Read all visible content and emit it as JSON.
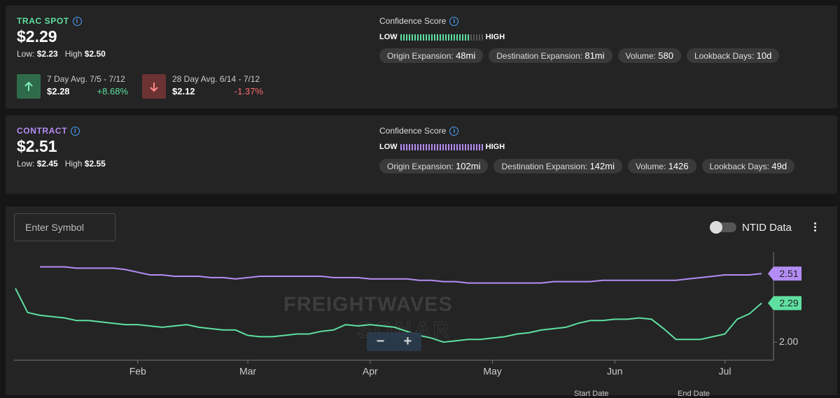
{
  "cards": [
    {
      "label": "TRAC SPOT",
      "accent": "#5ee0a0",
      "price": "$2.29",
      "low_label": "Low:",
      "low": "$2.23",
      "high_label": "High",
      "high": "$2.50",
      "averages": [
        {
          "title": "7 Day Avg. 7/5 - 7/12",
          "value": "$2.28",
          "change": "+8.68%",
          "direction": "up"
        },
        {
          "title": "28 Day Avg. 6/14 - 7/12",
          "value": "$2.12",
          "change": "-1.37%",
          "direction": "down"
        }
      ],
      "confidence": {
        "title": "Confidence Score",
        "low": "LOW",
        "high": "HIGH",
        "filled": 25,
        "total": 30
      },
      "chips": [
        {
          "label": "Origin Expansion:",
          "value": "48mi"
        },
        {
          "label": "Destination Expansion:",
          "value": "81mi"
        },
        {
          "label": "Volume:",
          "value": "580"
        },
        {
          "label": "Lookback Days:",
          "value": "10d"
        }
      ]
    },
    {
      "label": "CONTRACT",
      "accent": "#b48cf5",
      "price": "$2.51",
      "low_label": "Low:",
      "low": "$2.45",
      "high_label": "High",
      "high": "$2.55",
      "averages": [],
      "confidence": {
        "title": "Confidence Score",
        "low": "LOW",
        "high": "HIGH",
        "filled": 30,
        "total": 30
      },
      "chips": [
        {
          "label": "Origin Expansion:",
          "value": "102mi"
        },
        {
          "label": "Destination Expansion:",
          "value": "142mi"
        },
        {
          "label": "Volume:",
          "value": "1426"
        },
        {
          "label": "Lookback Days:",
          "value": "49d"
        }
      ]
    }
  ],
  "controls": {
    "symbol_placeholder": "Enter Symbol",
    "toggle": "NTID Data",
    "zoom_out": "−",
    "zoom_in": "+",
    "start_date": "Start Date",
    "end_date": "End Date"
  },
  "watermark": [
    "FREIGHTWAVES",
    "SONAR"
  ],
  "chart_data": {
    "type": "line",
    "categories": [
      null,
      null,
      null,
      null,
      null,
      null,
      null,
      null,
      null,
      null,
      "Feb",
      null,
      null,
      null,
      null,
      null,
      null,
      null,
      null,
      "Mar",
      null,
      null,
      null,
      null,
      null,
      null,
      null,
      null,
      null,
      "Apr",
      null,
      null,
      null,
      null,
      null,
      null,
      null,
      null,
      null,
      "May",
      null,
      null,
      null,
      null,
      null,
      null,
      null,
      null,
      null,
      "Jun",
      null,
      null,
      null,
      null,
      null,
      null,
      null,
      null,
      "Jul",
      null,
      null,
      null
    ],
    "series": [
      {
        "name": "CONTRACT",
        "color": "#b48cf5",
        "values": [
          null,
          null,
          2.56,
          2.56,
          2.56,
          2.55,
          2.55,
          2.55,
          2.55,
          2.54,
          2.52,
          2.5,
          2.5,
          2.49,
          2.49,
          2.49,
          2.48,
          2.48,
          2.47,
          2.48,
          2.49,
          2.49,
          2.49,
          2.49,
          2.49,
          2.49,
          2.48,
          2.48,
          2.48,
          2.47,
          2.47,
          2.47,
          2.47,
          2.46,
          2.46,
          2.45,
          2.45,
          2.44,
          2.44,
          2.44,
          2.44,
          2.44,
          2.44,
          2.44,
          2.45,
          2.45,
          2.45,
          2.45,
          2.46,
          2.46,
          2.46,
          2.46,
          2.46,
          2.46,
          2.46,
          2.47,
          2.48,
          2.49,
          2.5,
          2.5,
          2.5,
          2.51
        ]
      },
      {
        "name": "TRAC SPOT",
        "color": "#5ee0a0",
        "values": [
          2.4,
          2.22,
          2.2,
          2.19,
          2.18,
          2.16,
          2.16,
          2.15,
          2.14,
          2.13,
          2.13,
          2.12,
          2.11,
          2.12,
          2.13,
          2.11,
          2.1,
          2.09,
          2.09,
          2.05,
          2.04,
          2.04,
          2.05,
          2.06,
          2.06,
          2.08,
          2.09,
          2.13,
          2.12,
          2.13,
          2.12,
          2.11,
          2.08,
          2.05,
          2.03,
          2.0,
          2.01,
          2.02,
          2.02,
          2.03,
          2.04,
          2.06,
          2.07,
          2.09,
          2.1,
          2.11,
          2.14,
          2.16,
          2.16,
          2.17,
          2.17,
          2.18,
          2.17,
          2.1,
          2.02,
          2.02,
          2.02,
          2.04,
          2.06,
          2.17,
          2.21,
          2.29
        ]
      }
    ],
    "ylim": [
      1.865,
      2.646
    ],
    "yticks": [
      {
        "value": 2,
        "label": "2.00"
      }
    ],
    "grid": false
  }
}
